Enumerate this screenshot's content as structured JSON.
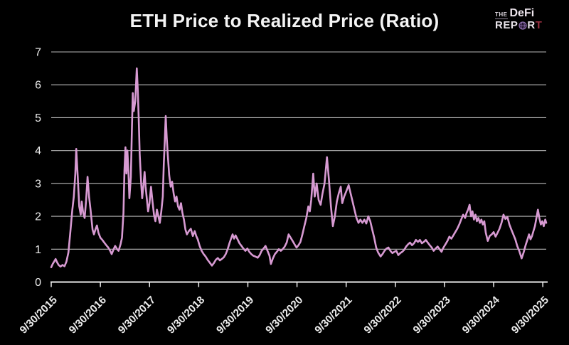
{
  "title": "ETH Price to Realized Price (Ratio)",
  "logo": {
    "the": "THE",
    "defi": "DeFi",
    "report_prefix": "REP",
    "report_o": "globe-icon",
    "report_r": "R",
    "report_t": "T",
    "colors": {
      "text": "#e9e4ea",
      "globe": "#8e6fae",
      "final_t": "#9a2f40"
    }
  },
  "colors": {
    "background": "#000000",
    "line": "#d79ad2",
    "gridline": "#b9b9b9",
    "axis": "#ededed",
    "text": "#ededed"
  },
  "chart_data": {
    "type": "line",
    "title": "ETH Price to Realized Price (Ratio)",
    "xlabel": "",
    "ylabel": "",
    "x_unit": "years since 2015-09-30",
    "x_tick_labels": [
      "9/30/2015",
      "9/30/2016",
      "9/30/2017",
      "9/30/2018",
      "9/30/2019",
      "9/30/2020",
      "9/30/2021",
      "9/30/2022",
      "9/30/2023",
      "9/30/2024",
      "9/30/2025"
    ],
    "x_tick_positions": [
      0,
      1,
      2,
      3,
      4,
      5,
      6,
      7,
      8,
      9,
      10
    ],
    "y_ticks": [
      0,
      1,
      2,
      3,
      4,
      5,
      6,
      7
    ],
    "ylim": [
      0,
      7
    ],
    "xlim": [
      0,
      10.07
    ],
    "grid": "horizontal",
    "legend": "none",
    "line_color": "#d79ad2",
    "background": "#000000",
    "series": [
      {
        "name": "ETH price / realized price ratio",
        "points": [
          [
            0,
            0.45
          ],
          [
            0.03,
            0.55
          ],
          [
            0.06,
            0.62
          ],
          [
            0.09,
            0.7
          ],
          [
            0.12,
            0.6
          ],
          [
            0.15,
            0.52
          ],
          [
            0.19,
            0.47
          ],
          [
            0.23,
            0.52
          ],
          [
            0.27,
            0.48
          ],
          [
            0.31,
            0.62
          ],
          [
            0.35,
            0.9
          ],
          [
            0.39,
            1.55
          ],
          [
            0.43,
            2.2
          ],
          [
            0.46,
            2.6
          ],
          [
            0.49,
            3.3
          ],
          [
            0.51,
            4.05
          ],
          [
            0.54,
            3.2
          ],
          [
            0.57,
            2.3
          ],
          [
            0.6,
            2.05
          ],
          [
            0.62,
            2.45
          ],
          [
            0.65,
            2.1
          ],
          [
            0.68,
            1.95
          ],
          [
            0.71,
            2.5
          ],
          [
            0.74,
            3.2
          ],
          [
            0.77,
            2.6
          ],
          [
            0.8,
            2.2
          ],
          [
            0.84,
            1.6
          ],
          [
            0.87,
            1.45
          ],
          [
            0.9,
            1.6
          ],
          [
            0.93,
            1.72
          ],
          [
            0.96,
            1.5
          ],
          [
            1,
            1.35
          ],
          [
            1.04,
            1.28
          ],
          [
            1.08,
            1.2
          ],
          [
            1.12,
            1.12
          ],
          [
            1.16,
            1.05
          ],
          [
            1.2,
            0.95
          ],
          [
            1.23,
            0.85
          ],
          [
            1.27,
            1.0
          ],
          [
            1.3,
            1.1
          ],
          [
            1.34,
            1.0
          ],
          [
            1.37,
            0.95
          ],
          [
            1.41,
            1.15
          ],
          [
            1.44,
            1.35
          ],
          [
            1.47,
            2.1
          ],
          [
            1.49,
            3.4
          ],
          [
            1.51,
            4.1
          ],
          [
            1.53,
            3.3
          ],
          [
            1.55,
            4.0
          ],
          [
            1.57,
            3.4
          ],
          [
            1.59,
            2.55
          ],
          [
            1.62,
            3.2
          ],
          [
            1.64,
            4.6
          ],
          [
            1.66,
            5.75
          ],
          [
            1.68,
            5.2
          ],
          [
            1.71,
            5.5
          ],
          [
            1.74,
            6.5
          ],
          [
            1.76,
            5.9
          ],
          [
            1.78,
            5.0
          ],
          [
            1.8,
            3.9
          ],
          [
            1.83,
            3.0
          ],
          [
            1.85,
            2.55
          ],
          [
            1.88,
            3.0
          ],
          [
            1.9,
            3.35
          ],
          [
            1.92,
            2.9
          ],
          [
            1.94,
            2.6
          ],
          [
            1.97,
            2.15
          ],
          [
            2,
            2.4
          ],
          [
            2.03,
            2.9
          ],
          [
            2.06,
            2.45
          ],
          [
            2.09,
            2.05
          ],
          [
            2.12,
            1.85
          ],
          [
            2.15,
            2.2
          ],
          [
            2.18,
            2.0
          ],
          [
            2.21,
            1.8
          ],
          [
            2.24,
            2.15
          ],
          [
            2.27,
            2.6
          ],
          [
            2.29,
            3.6
          ],
          [
            2.31,
            4.3
          ],
          [
            2.33,
            5.05
          ],
          [
            2.35,
            4.4
          ],
          [
            2.37,
            3.9
          ],
          [
            2.4,
            3.25
          ],
          [
            2.43,
            2.9
          ],
          [
            2.46,
            3.05
          ],
          [
            2.49,
            2.7
          ],
          [
            2.52,
            2.45
          ],
          [
            2.55,
            2.6
          ],
          [
            2.58,
            2.3
          ],
          [
            2.61,
            2.2
          ],
          [
            2.64,
            2.4
          ],
          [
            2.67,
            2.1
          ],
          [
            2.7,
            1.9
          ],
          [
            2.73,
            1.6
          ],
          [
            2.76,
            1.45
          ],
          [
            2.8,
            1.55
          ],
          [
            2.84,
            1.62
          ],
          [
            2.88,
            1.4
          ],
          [
            2.92,
            1.55
          ],
          [
            2.95,
            1.4
          ],
          [
            2.98,
            1.3
          ],
          [
            3.02,
            1.1
          ],
          [
            3.06,
            0.95
          ],
          [
            3.1,
            0.85
          ],
          [
            3.14,
            0.78
          ],
          [
            3.18,
            0.68
          ],
          [
            3.22,
            0.6
          ],
          [
            3.27,
            0.5
          ],
          [
            3.31,
            0.58
          ],
          [
            3.35,
            0.68
          ],
          [
            3.39,
            0.73
          ],
          [
            3.43,
            0.66
          ],
          [
            3.47,
            0.7
          ],
          [
            3.51,
            0.75
          ],
          [
            3.55,
            0.85
          ],
          [
            3.59,
            1.0
          ],
          [
            3.63,
            1.2
          ],
          [
            3.69,
            1.45
          ],
          [
            3.72,
            1.32
          ],
          [
            3.75,
            1.42
          ],
          [
            3.79,
            1.3
          ],
          [
            3.83,
            1.18
          ],
          [
            3.87,
            1.1
          ],
          [
            3.91,
            1.02
          ],
          [
            3.95,
            0.95
          ],
          [
            3.99,
            1.02
          ],
          [
            4.03,
            0.92
          ],
          [
            4.07,
            0.85
          ],
          [
            4.11,
            0.8
          ],
          [
            4.15,
            0.78
          ],
          [
            4.2,
            0.74
          ],
          [
            4.24,
            0.82
          ],
          [
            4.28,
            0.95
          ],
          [
            4.32,
            1.02
          ],
          [
            4.36,
            1.1
          ],
          [
            4.4,
            0.95
          ],
          [
            4.44,
            0.8
          ],
          [
            4.47,
            0.55
          ],
          [
            4.51,
            0.72
          ],
          [
            4.55,
            0.85
          ],
          [
            4.59,
            0.92
          ],
          [
            4.63,
            1.0
          ],
          [
            4.67,
            0.95
          ],
          [
            4.71,
            1.0
          ],
          [
            4.75,
            1.08
          ],
          [
            4.79,
            1.2
          ],
          [
            4.83,
            1.45
          ],
          [
            4.87,
            1.35
          ],
          [
            4.91,
            1.25
          ],
          [
            4.95,
            1.15
          ],
          [
            4.99,
            1.05
          ],
          [
            5.03,
            1.12
          ],
          [
            5.07,
            1.22
          ],
          [
            5.11,
            1.45
          ],
          [
            5.15,
            1.7
          ],
          [
            5.19,
            1.95
          ],
          [
            5.23,
            2.3
          ],
          [
            5.26,
            2.15
          ],
          [
            5.29,
            2.5
          ],
          [
            5.33,
            3.3
          ],
          [
            5.36,
            2.6
          ],
          [
            5.4,
            3.0
          ],
          [
            5.44,
            2.5
          ],
          [
            5.48,
            2.35
          ],
          [
            5.52,
            2.7
          ],
          [
            5.56,
            3.0
          ],
          [
            5.61,
            3.8
          ],
          [
            5.65,
            3.1
          ],
          [
            5.69,
            2.3
          ],
          [
            5.73,
            1.7
          ],
          [
            5.77,
            2.0
          ],
          [
            5.81,
            2.45
          ],
          [
            5.85,
            2.7
          ],
          [
            5.89,
            2.9
          ],
          [
            5.92,
            2.4
          ],
          [
            5.96,
            2.6
          ],
          [
            6.0,
            2.75
          ],
          [
            6.05,
            2.95
          ],
          [
            6.09,
            2.7
          ],
          [
            6.13,
            2.45
          ],
          [
            6.17,
            2.2
          ],
          [
            6.21,
            1.95
          ],
          [
            6.25,
            1.8
          ],
          [
            6.29,
            1.9
          ],
          [
            6.33,
            1.8
          ],
          [
            6.37,
            1.9
          ],
          [
            6.41,
            1.78
          ],
          [
            6.45,
            2.0
          ],
          [
            6.49,
            1.85
          ],
          [
            6.53,
            1.6
          ],
          [
            6.57,
            1.35
          ],
          [
            6.61,
            1.05
          ],
          [
            6.65,
            0.9
          ],
          [
            6.7,
            0.78
          ],
          [
            6.74,
            0.85
          ],
          [
            6.78,
            0.95
          ],
          [
            6.82,
            1.02
          ],
          [
            6.86,
            1.05
          ],
          [
            6.9,
            0.95
          ],
          [
            6.94,
            0.88
          ],
          [
            6.98,
            0.92
          ],
          [
            7.02,
            0.95
          ],
          [
            7.06,
            0.82
          ],
          [
            7.1,
            0.88
          ],
          [
            7.14,
            0.92
          ],
          [
            7.18,
            0.98
          ],
          [
            7.22,
            1.08
          ],
          [
            7.26,
            1.15
          ],
          [
            7.3,
            1.2
          ],
          [
            7.34,
            1.12
          ],
          [
            7.38,
            1.18
          ],
          [
            7.42,
            1.28
          ],
          [
            7.46,
            1.22
          ],
          [
            7.5,
            1.28
          ],
          [
            7.54,
            1.18
          ],
          [
            7.58,
            1.22
          ],
          [
            7.62,
            1.28
          ],
          [
            7.66,
            1.2
          ],
          [
            7.7,
            1.12
          ],
          [
            7.74,
            1.05
          ],
          [
            7.78,
            0.95
          ],
          [
            7.82,
            1.02
          ],
          [
            7.86,
            1.08
          ],
          [
            7.9,
            1.0
          ],
          [
            7.94,
            0.92
          ],
          [
            7.98,
            1.05
          ],
          [
            8.02,
            1.15
          ],
          [
            8.06,
            1.25
          ],
          [
            8.1,
            1.38
          ],
          [
            8.14,
            1.32
          ],
          [
            8.18,
            1.42
          ],
          [
            8.22,
            1.52
          ],
          [
            8.26,
            1.62
          ],
          [
            8.3,
            1.75
          ],
          [
            8.34,
            1.9
          ],
          [
            8.38,
            2.05
          ],
          [
            8.42,
            1.95
          ],
          [
            8.45,
            2.1
          ],
          [
            8.48,
            2.2
          ],
          [
            8.51,
            2.35
          ],
          [
            8.54,
            2.0
          ],
          [
            8.57,
            2.15
          ],
          [
            8.6,
            1.9
          ],
          [
            8.63,
            2.05
          ],
          [
            8.66,
            1.85
          ],
          [
            8.69,
            1.95
          ],
          [
            8.72,
            1.8
          ],
          [
            8.75,
            1.9
          ],
          [
            8.78,
            1.75
          ],
          [
            8.81,
            1.85
          ],
          [
            8.84,
            1.5
          ],
          [
            8.88,
            1.25
          ],
          [
            8.92,
            1.4
          ],
          [
            8.96,
            1.45
          ],
          [
            9.0,
            1.52
          ],
          [
            9.04,
            1.38
          ],
          [
            9.08,
            1.5
          ],
          [
            9.12,
            1.62
          ],
          [
            9.16,
            1.8
          ],
          [
            9.2,
            2.05
          ],
          [
            9.24,
            1.92
          ],
          [
            9.28,
            1.98
          ],
          [
            9.32,
            1.75
          ],
          [
            9.36,
            1.6
          ],
          [
            9.4,
            1.45
          ],
          [
            9.44,
            1.3
          ],
          [
            9.48,
            1.1
          ],
          [
            9.52,
            0.95
          ],
          [
            9.57,
            0.72
          ],
          [
            9.61,
            0.9
          ],
          [
            9.65,
            1.12
          ],
          [
            9.69,
            1.3
          ],
          [
            9.72,
            1.45
          ],
          [
            9.75,
            1.3
          ],
          [
            9.78,
            1.4
          ],
          [
            9.81,
            1.55
          ],
          [
            9.84,
            1.7
          ],
          [
            9.87,
            1.95
          ],
          [
            9.9,
            2.2
          ],
          [
            9.93,
            1.95
          ],
          [
            9.96,
            1.75
          ],
          [
            9.99,
            1.85
          ],
          [
            10.02,
            1.7
          ],
          [
            10.05,
            1.9
          ],
          [
            10.07,
            1.8
          ]
        ]
      }
    ]
  }
}
